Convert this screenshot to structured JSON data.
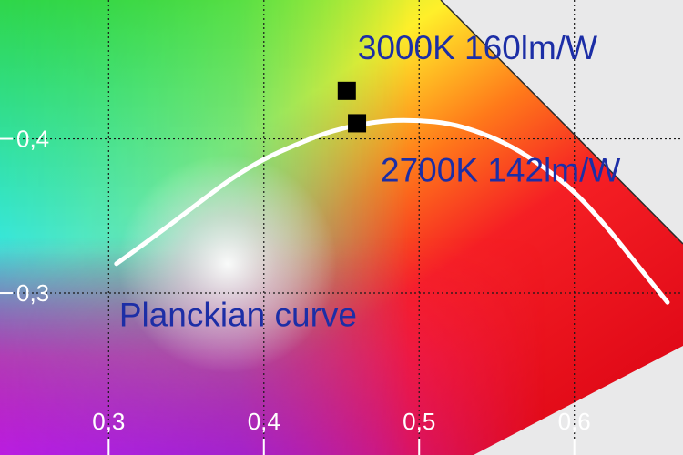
{
  "chart_data": {
    "type": "scatter",
    "title": "",
    "xlabel": "",
    "ylabel": "",
    "xlim": [
      0.23,
      0.67
    ],
    "ylim": [
      0.195,
      0.49
    ],
    "x_ticks": [
      0.3,
      0.4,
      0.5,
      0.6
    ],
    "x_tick_labels": [
      "0,3",
      "0,4",
      "0,5",
      "0,6"
    ],
    "y_ticks": [
      0.3,
      0.4
    ],
    "y_tick_labels": [
      "0,3",
      "0,4"
    ],
    "grid": true,
    "background": "CIE 1931 chromaticity diagram (colored gamut region)",
    "series": [
      {
        "name": "",
        "marker": "square",
        "color": "#000000",
        "points": [
          {
            "x": 0.4534,
            "y": 0.4311,
            "label": "3000K 160lm/W"
          },
          {
            "x": 0.46,
            "y": 0.4101,
            "label": "2700K 142lm/W"
          }
        ]
      }
    ],
    "planckian_curve": {
      "label": "Planckian curve",
      "color": "#ffffff",
      "points": [
        [
          0.305,
          0.319
        ],
        [
          0.33,
          0.337
        ],
        [
          0.36,
          0.36
        ],
        [
          0.38,
          0.375
        ],
        [
          0.4,
          0.387
        ],
        [
          0.42,
          0.396
        ],
        [
          0.44,
          0.404
        ],
        [
          0.46,
          0.409
        ],
        [
          0.48,
          0.412
        ],
        [
          0.5,
          0.412
        ],
        [
          0.52,
          0.41
        ],
        [
          0.54,
          0.404
        ],
        [
          0.56,
          0.395
        ],
        [
          0.58,
          0.382
        ],
        [
          0.6,
          0.366
        ],
        [
          0.62,
          0.344
        ],
        [
          0.64,
          0.319
        ],
        [
          0.66,
          0.294
        ]
      ]
    },
    "annotation_colors": {
      "labels": "#1c2ea6",
      "ticks": "#ffffff"
    }
  }
}
